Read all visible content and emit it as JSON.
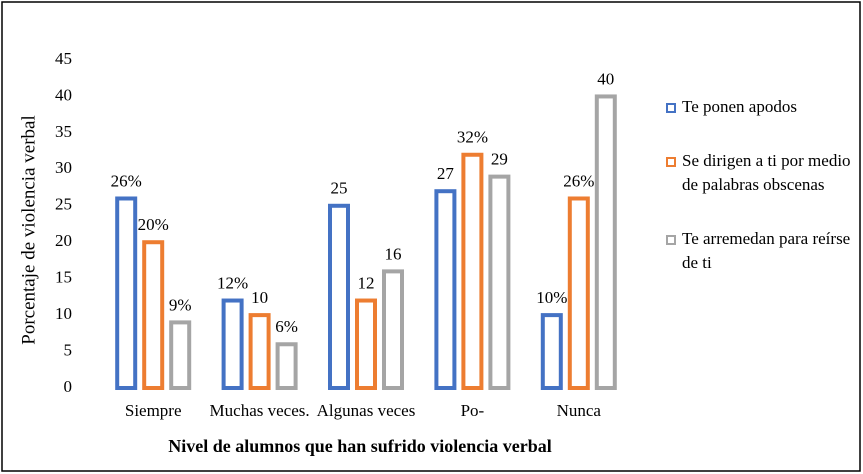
{
  "chart_data": {
    "type": "bar",
    "xlabel": "Nivel de  alumnos que han sufrido violencia verbal",
    "ylabel": "Porcentaje de violencia verbal",
    "categories": [
      "Siempre",
      "Muchas veces.",
      "Algunas veces",
      "Po-",
      "Nunca"
    ],
    "series": [
      {
        "name": "Te ponen apodos",
        "color": "#4472c4",
        "values": [
          26,
          12,
          25,
          27,
          10
        ],
        "value_labels": [
          "26%",
          "12%",
          "25",
          "27",
          "10%"
        ]
      },
      {
        "name": "Se dirigen a ti por medio de palabras obscenas",
        "color": "#ed7d31",
        "values": [
          20,
          10,
          12,
          32,
          26
        ],
        "value_labels": [
          "20%",
          "10",
          "12",
          "32%",
          "26%"
        ]
      },
      {
        "name": "Te arremedan para reírse de ti",
        "color": "#a5a5a5",
        "values": [
          9,
          6,
          16,
          29,
          40
        ],
        "value_labels": [
          "9%",
          "6%",
          "16",
          "29",
          "40"
        ]
      }
    ],
    "ylim": [
      0,
      45
    ],
    "yticks": [
      0,
      5,
      10,
      15,
      20,
      25,
      30,
      35,
      40,
      45
    ],
    "grid": false,
    "legend": "right"
  }
}
